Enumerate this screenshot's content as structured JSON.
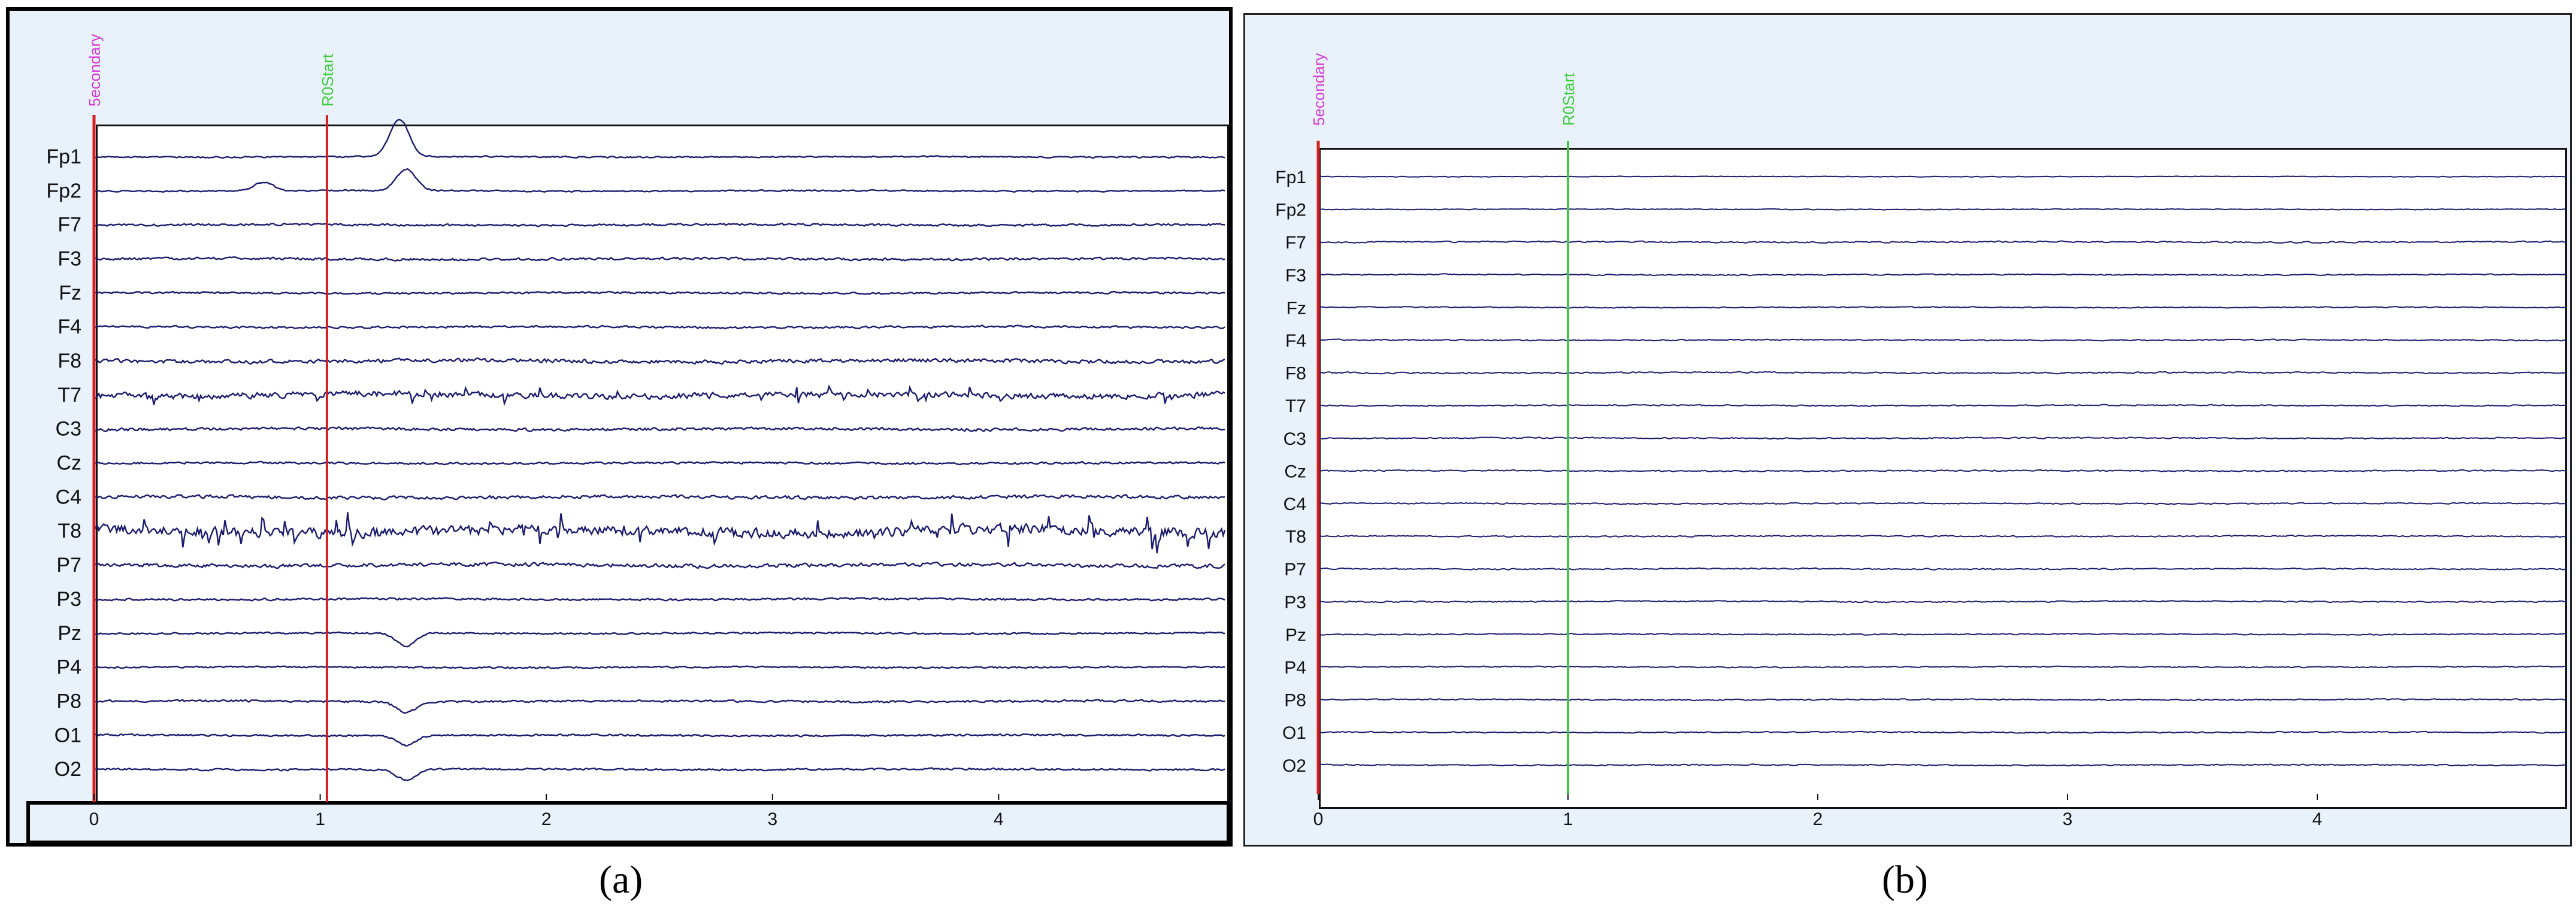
{
  "colors": {
    "background": "#e9f2fb",
    "trace": "#1a1a6e",
    "boundary_line": "#d42020",
    "boundary_label": "#d63ad6",
    "r0_line_a": "#d42020",
    "r0_line_b": "#3ccc3c",
    "r0_label": "#3ccc3c"
  },
  "panels": [
    {
      "id": "a",
      "caption": "(a)"
    },
    {
      "id": "b",
      "caption": "(b)"
    }
  ],
  "chart_data": [
    {
      "type": "line",
      "title": "",
      "xlabel": "",
      "ylabel": "",
      "xlim": [
        0,
        5
      ],
      "x_ticks": [
        0,
        1,
        2,
        3,
        4
      ],
      "channels": [
        "Fp1",
        "Fp2",
        "F7",
        "F3",
        "Fz",
        "F4",
        "F8",
        "T7",
        "C3",
        "Cz",
        "C4",
        "T8",
        "P7",
        "P3",
        "Pz",
        "P4",
        "P8",
        "O1",
        "O2"
      ],
      "markers": [
        {
          "label": "5econdary",
          "x": 0
        },
        {
          "label": "R0Start",
          "x": 1.03
        }
      ],
      "noise_level": [
        0.35,
        0.35,
        0.5,
        0.6,
        0.45,
        0.5,
        0.9,
        1.4,
        0.7,
        0.5,
        0.8,
        2.4,
        0.9,
        0.5,
        0.4,
        0.4,
        0.5,
        0.45,
        0.45
      ],
      "artifacts": [
        {
          "channel": "Fp1",
          "x": 1.35,
          "amplitude": -3.5
        },
        {
          "channel": "Fp2",
          "x": 1.38,
          "amplitude": -2.0
        },
        {
          "channel": "Fp2",
          "x": 0.75,
          "amplitude": -0.8
        },
        {
          "channel": "Pz",
          "x": 1.38,
          "amplitude": 1.2
        },
        {
          "channel": "P8",
          "x": 1.38,
          "amplitude": 1.0
        },
        {
          "channel": "O1",
          "x": 1.38,
          "amplitude": 0.9
        },
        {
          "channel": "O2",
          "x": 1.38,
          "amplitude": 1.0
        }
      ],
      "grid": false
    },
    {
      "type": "line",
      "title": "",
      "xlabel": "",
      "ylabel": "",
      "xlim": [
        0,
        5
      ],
      "x_ticks": [
        0,
        1,
        2,
        3,
        4
      ],
      "channels": [
        "Fp1",
        "Fp2",
        "F7",
        "F3",
        "Fz",
        "F4",
        "F8",
        "T7",
        "C3",
        "Cz",
        "C4",
        "T8",
        "P7",
        "P3",
        "Pz",
        "P4",
        "P8",
        "O1",
        "O2"
      ],
      "markers": [
        {
          "label": "5econdary",
          "x": 0
        },
        {
          "label": "R0Start",
          "x": 1.0
        }
      ],
      "noise_level": [
        0.15,
        0.2,
        0.35,
        0.3,
        0.25,
        0.3,
        0.35,
        0.3,
        0.3,
        0.3,
        0.3,
        0.3,
        0.3,
        0.3,
        0.3,
        0.3,
        0.3,
        0.3,
        0.3
      ],
      "artifacts": [],
      "grid": false
    }
  ]
}
